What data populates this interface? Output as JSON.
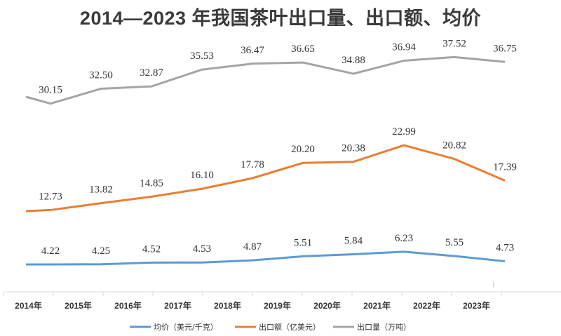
{
  "chart_data": {
    "type": "line",
    "title": "2014—2023 年我国茶叶出口量、出口额、均价",
    "categories": [
      "2014年",
      "2015年",
      "2016年",
      "2017年",
      "2018年",
      "2019年",
      "2020年",
      "2021年",
      "2022年",
      "2023年"
    ],
    "series": [
      {
        "name": "均价（美元/千克）",
        "color": "#5b9bd5",
        "values": [
          4.22,
          4.25,
          4.52,
          4.53,
          4.87,
          5.51,
          5.84,
          6.23,
          5.55,
          4.73
        ],
        "labels": [
          "4.22",
          "4.25",
          "4.52",
          "4.53",
          "4.87",
          "5.51",
          "5.84",
          "6.23",
          "5.55",
          "4.73"
        ]
      },
      {
        "name": "出口额（亿美元）",
        "color": "#ed7d31",
        "values": [
          12.73,
          13.82,
          14.85,
          16.1,
          17.78,
          20.2,
          20.38,
          22.99,
          20.82,
          17.39
        ],
        "labels": [
          "12.73",
          "13.82",
          "14.85",
          "16.10",
          "17.78",
          "20.20",
          "20.38",
          "22.99",
          "20.82",
          "17.39"
        ]
      },
      {
        "name": "出口量（万吨）",
        "color": "#a5a5a5",
        "values": [
          30.15,
          32.5,
          32.87,
          35.53,
          36.47,
          36.65,
          34.88,
          36.94,
          37.52,
          36.75
        ],
        "labels": [
          "30.15",
          "32.50",
          "32.87",
          "35.53",
          "36.47",
          "36.65",
          "34.88",
          "36.94",
          "37.52",
          "36.75"
        ]
      }
    ],
    "legend": "bottom",
    "grid": false,
    "y_axis_visible": false
  }
}
